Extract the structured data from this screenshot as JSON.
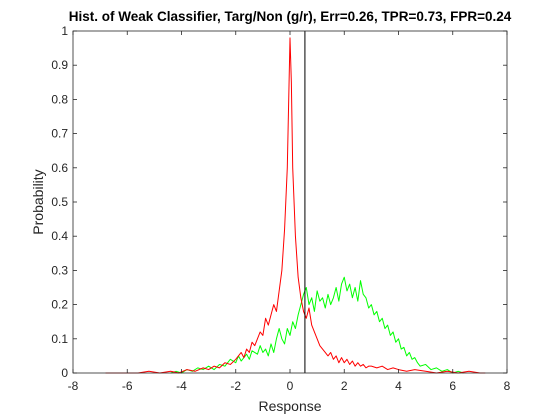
{
  "chart_data": {
    "type": "line",
    "title": "Hist. of Weak Classifier, Targ/Non (g/r), Err=0.26, TPR=0.73, FPR=0.24",
    "xlabel": "Response",
    "ylabel": "Probability",
    "xlim": [
      -8,
      8
    ],
    "ylim": [
      0,
      1
    ],
    "xticks": [
      -8,
      -6,
      -4,
      -2,
      0,
      2,
      4,
      6,
      8
    ],
    "yticks": [
      0,
      0.1,
      0.2,
      0.3,
      0.4,
      0.5,
      0.6,
      0.7,
      0.8,
      0.9,
      1
    ],
    "threshold_x": 0.55,
    "grid": false,
    "box": true,
    "series": [
      {
        "color": "#00ff00",
        "points": [
          [
            -4.4,
            0.0
          ],
          [
            -4.2,
            0.005
          ],
          [
            -4.0,
            0.0
          ],
          [
            -3.8,
            0.01
          ],
          [
            -3.6,
            0.005
          ],
          [
            -3.4,
            0.015
          ],
          [
            -3.2,
            0.01
          ],
          [
            -3.0,
            0.02
          ],
          [
            -2.8,
            0.01
          ],
          [
            -2.6,
            0.025
          ],
          [
            -2.4,
            0.02
          ],
          [
            -2.2,
            0.04
          ],
          [
            -2.0,
            0.03
          ],
          [
            -1.9,
            0.05
          ],
          [
            -1.8,
            0.035
          ],
          [
            -1.6,
            0.055
          ],
          [
            -1.5,
            0.04
          ],
          [
            -1.4,
            0.065
          ],
          [
            -1.2,
            0.055
          ],
          [
            -1.1,
            0.08
          ],
          [
            -1.0,
            0.06
          ],
          [
            -0.9,
            0.07
          ],
          [
            -0.8,
            0.05
          ],
          [
            -0.7,
            0.085
          ],
          [
            -0.6,
            0.06
          ],
          [
            -0.5,
            0.1
          ],
          [
            -0.4,
            0.13
          ],
          [
            -0.3,
            0.1
          ],
          [
            -0.2,
            0.085
          ],
          [
            -0.1,
            0.13
          ],
          [
            0.0,
            0.11
          ],
          [
            0.1,
            0.15
          ],
          [
            0.2,
            0.13
          ],
          [
            0.3,
            0.17
          ],
          [
            0.4,
            0.2
          ],
          [
            0.5,
            0.23
          ],
          [
            0.6,
            0.25
          ],
          [
            0.7,
            0.2
          ],
          [
            0.8,
            0.22
          ],
          [
            0.9,
            0.18
          ],
          [
            1.0,
            0.24
          ],
          [
            1.1,
            0.21
          ],
          [
            1.2,
            0.22
          ],
          [
            1.3,
            0.19
          ],
          [
            1.4,
            0.23
          ],
          [
            1.5,
            0.2
          ],
          [
            1.6,
            0.22
          ],
          [
            1.7,
            0.25
          ],
          [
            1.8,
            0.21
          ],
          [
            1.9,
            0.26
          ],
          [
            2.0,
            0.28
          ],
          [
            2.1,
            0.24
          ],
          [
            2.2,
            0.26
          ],
          [
            2.3,
            0.22
          ],
          [
            2.4,
            0.25
          ],
          [
            2.5,
            0.21
          ],
          [
            2.6,
            0.27
          ],
          [
            2.7,
            0.23
          ],
          [
            2.8,
            0.22
          ],
          [
            2.9,
            0.19
          ],
          [
            3.0,
            0.2
          ],
          [
            3.1,
            0.17
          ],
          [
            3.2,
            0.18
          ],
          [
            3.3,
            0.15
          ],
          [
            3.4,
            0.16
          ],
          [
            3.5,
            0.13
          ],
          [
            3.6,
            0.14
          ],
          [
            3.7,
            0.11
          ],
          [
            3.8,
            0.12
          ],
          [
            3.9,
            0.09
          ],
          [
            4.0,
            0.1
          ],
          [
            4.1,
            0.07
          ],
          [
            4.2,
            0.075
          ],
          [
            4.3,
            0.05
          ],
          [
            4.4,
            0.06
          ],
          [
            4.5,
            0.04
          ],
          [
            4.6,
            0.045
          ],
          [
            4.7,
            0.03
          ],
          [
            4.8,
            0.02
          ],
          [
            5.0,
            0.025
          ],
          [
            5.2,
            0.01
          ],
          [
            5.4,
            0.015
          ],
          [
            5.6,
            0.005
          ],
          [
            5.8,
            0.01
          ],
          [
            6.0,
            0.0
          ],
          [
            6.2,
            0.005
          ],
          [
            6.4,
            0.0
          ]
        ]
      },
      {
        "color": "#ff0000",
        "points": [
          [
            -6.8,
            0.0
          ],
          [
            -6.2,
            0.0
          ],
          [
            -5.6,
            0.0
          ],
          [
            -5.2,
            0.005
          ],
          [
            -4.8,
            0.0
          ],
          [
            -4.4,
            0.005
          ],
          [
            -4.1,
            0.0
          ],
          [
            -3.8,
            0.01
          ],
          [
            -3.5,
            0.005
          ],
          [
            -3.2,
            0.015
          ],
          [
            -3.0,
            0.01
          ],
          [
            -2.8,
            0.02
          ],
          [
            -2.6,
            0.015
          ],
          [
            -2.4,
            0.03
          ],
          [
            -2.2,
            0.025
          ],
          [
            -2.0,
            0.04
          ],
          [
            -1.8,
            0.06
          ],
          [
            -1.7,
            0.045
          ],
          [
            -1.6,
            0.07
          ],
          [
            -1.5,
            0.06
          ],
          [
            -1.4,
            0.09
          ],
          [
            -1.3,
            0.08
          ],
          [
            -1.2,
            0.1
          ],
          [
            -1.1,
            0.12
          ],
          [
            -1.0,
            0.11
          ],
          [
            -0.9,
            0.16
          ],
          [
            -0.8,
            0.14
          ],
          [
            -0.7,
            0.17
          ],
          [
            -0.6,
            0.2
          ],
          [
            -0.5,
            0.18
          ],
          [
            -0.4,
            0.24
          ],
          [
            -0.3,
            0.3
          ],
          [
            -0.2,
            0.42
          ],
          [
            -0.1,
            0.6
          ],
          [
            0.0,
            0.98
          ],
          [
            0.05,
            0.85
          ],
          [
            0.1,
            0.6
          ],
          [
            0.2,
            0.4
          ],
          [
            0.3,
            0.28
          ],
          [
            0.4,
            0.22
          ],
          [
            0.5,
            0.18
          ],
          [
            0.6,
            0.16
          ],
          [
            0.7,
            0.19
          ],
          [
            0.8,
            0.14
          ],
          [
            0.9,
            0.12
          ],
          [
            1.0,
            0.1
          ],
          [
            1.1,
            0.08
          ],
          [
            1.2,
            0.07
          ],
          [
            1.3,
            0.06
          ],
          [
            1.4,
            0.05
          ],
          [
            1.5,
            0.06
          ],
          [
            1.6,
            0.04
          ],
          [
            1.7,
            0.05
          ],
          [
            1.8,
            0.03
          ],
          [
            1.9,
            0.045
          ],
          [
            2.0,
            0.03
          ],
          [
            2.1,
            0.04
          ],
          [
            2.2,
            0.025
          ],
          [
            2.3,
            0.035
          ],
          [
            2.4,
            0.02
          ],
          [
            2.5,
            0.03
          ],
          [
            2.6,
            0.02
          ],
          [
            2.7,
            0.025
          ],
          [
            2.8,
            0.015
          ],
          [
            2.9,
            0.02
          ],
          [
            3.0,
            0.02
          ],
          [
            3.2,
            0.015
          ],
          [
            3.4,
            0.02
          ],
          [
            3.6,
            0.01
          ],
          [
            3.8,
            0.015
          ],
          [
            4.0,
            0.01
          ],
          [
            4.3,
            0.005
          ],
          [
            4.6,
            0.01
          ],
          [
            5.0,
            0.005
          ],
          [
            5.4,
            0.0
          ],
          [
            5.8,
            0.005
          ],
          [
            6.2,
            0.0
          ],
          [
            6.6,
            0.005
          ],
          [
            7.0,
            0.0
          ],
          [
            7.2,
            0.0
          ]
        ]
      }
    ]
  }
}
